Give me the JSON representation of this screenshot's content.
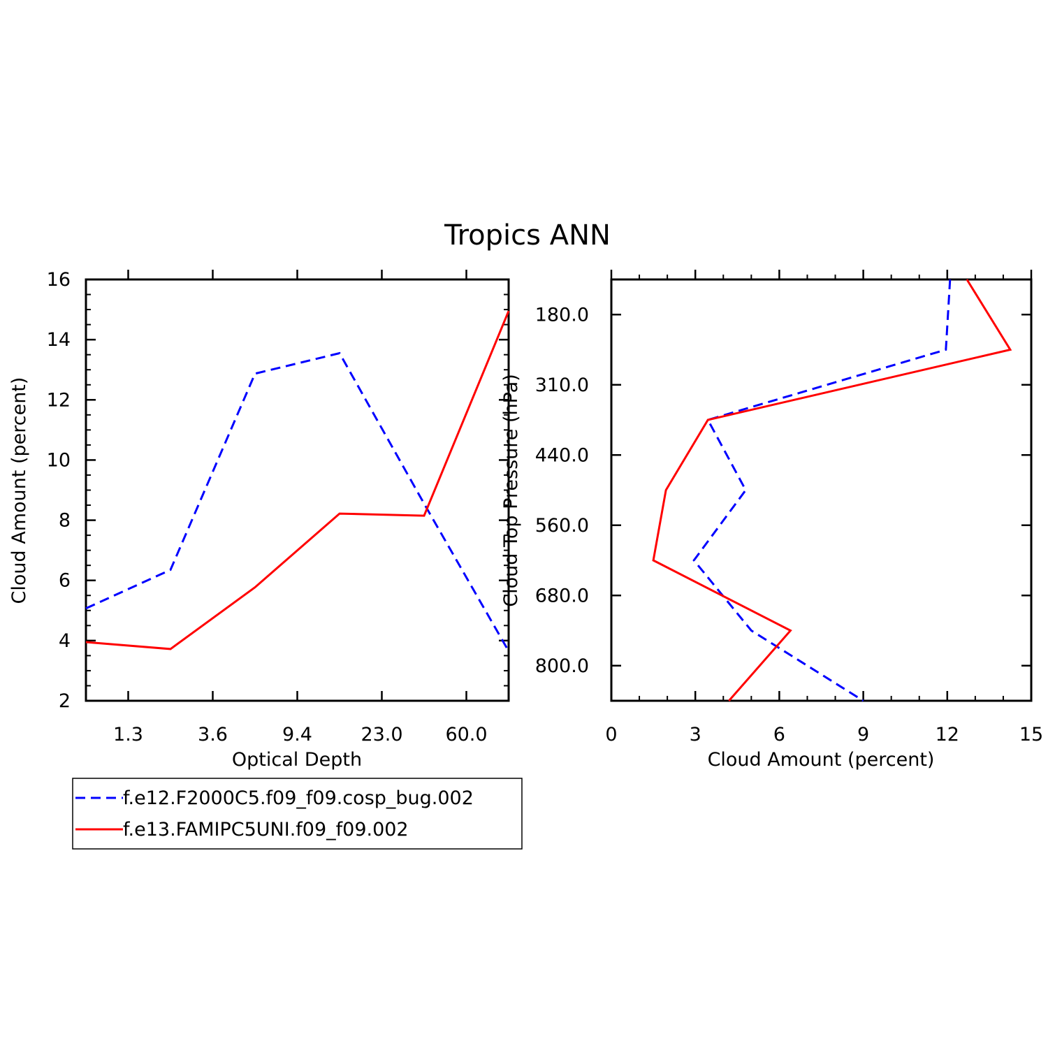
{
  "title": "Tropics ANN",
  "legend": [
    {
      "label": "f.e12.F2000C5.f09_f09.cosp_bug.002",
      "color": "#0000ff",
      "dash": true
    },
    {
      "label": "f.e13.FAMIPC5UNI.f09_f09.002",
      "color": "#ff0000",
      "dash": false
    }
  ],
  "chart_data": [
    {
      "type": "line",
      "xlabel": "Optical Depth",
      "ylabel": "Cloud Amount (percent)",
      "x_tick_labels": [
        "1.3",
        "3.6",
        "9.4",
        "23.0",
        "60.0"
      ],
      "x_tick_positions": [
        0.5,
        1.5,
        2.5,
        3.5,
        4.5
      ],
      "y_tick_labels": [
        "2",
        "4",
        "6",
        "8",
        "10",
        "12",
        "14",
        "16"
      ],
      "ylim": [
        2,
        16
      ],
      "xlim": [
        0,
        5
      ],
      "x": [
        0,
        1,
        2,
        3,
        4,
        5
      ],
      "series": [
        {
          "name": "f.e12.F2000C5.f09_f09.cosp_bug.002",
          "values": [
            5.07,
            6.35,
            12.87,
            13.55,
            8.55,
            3.65
          ]
        },
        {
          "name": "f.e13.FAMIPC5UNI.f09_f09.002",
          "values": [
            3.95,
            3.72,
            5.77,
            8.22,
            8.15,
            14.95
          ]
        }
      ]
    },
    {
      "type": "line",
      "xlabel": "Cloud Amount (percent)",
      "ylabel": "Cloud Top Pressure (hPa)",
      "x_tick_labels": [
        "0",
        "3",
        "6",
        "9",
        "12",
        "15"
      ],
      "xlim": [
        0,
        15
      ],
      "y_tick_labels": [
        "180.0",
        "310.0",
        "440.0",
        "560.0",
        "680.0",
        "800.0"
      ],
      "y_tick_positions": [
        1,
        3,
        5,
        7,
        9,
        11
      ],
      "ylim": [
        0,
        12
      ],
      "y": [
        0,
        2,
        4,
        6,
        8,
        10,
        12
      ],
      "series": [
        {
          "name": "f.e12.F2000C5.f09_f09.cosp_bug.002",
          "values": [
            12.1,
            11.95,
            3.45,
            4.8,
            2.95,
            5.0,
            9.0
          ]
        },
        {
          "name": "f.e13.FAMIPC5UNI.f09_f09.002",
          "values": [
            12.7,
            14.25,
            3.45,
            1.95,
            1.5,
            6.4,
            4.2
          ]
        }
      ]
    }
  ]
}
